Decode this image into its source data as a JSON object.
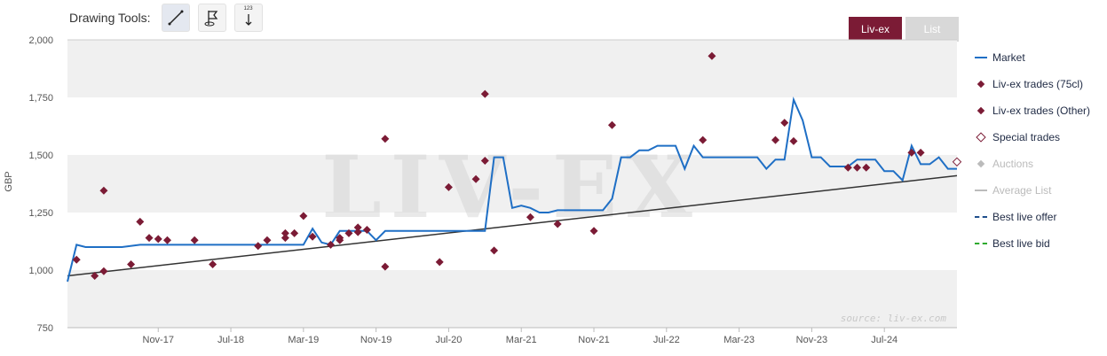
{
  "toolbar": {
    "label": "Drawing Tools:",
    "tools": [
      {
        "icon": "line-draw-icon"
      },
      {
        "icon": "flag-annotation-icon"
      },
      {
        "icon": "measure-icon",
        "badge": "123"
      }
    ]
  },
  "view_toggle": {
    "active": "Liv-ex",
    "inactive": "List"
  },
  "watermark": "source: liv-ex.com",
  "watermark_logo": "LIV-EX",
  "chart_data": {
    "type": "line",
    "ylabel": "GBP",
    "ylim": [
      750,
      2000
    ],
    "yticks": [
      "2,000",
      "1,750",
      "1,500",
      "1,250",
      "1,000",
      "750"
    ],
    "ytick_values": [
      2000,
      1750,
      1500,
      1250,
      1000,
      750
    ],
    "xlim": [
      "2017-01",
      "2025-03"
    ],
    "xticks": [
      {
        "label": "Nov-17",
        "date": "2017-11"
      },
      {
        "label": "Jul-18",
        "date": "2018-07"
      },
      {
        "label": "Mar-19",
        "date": "2019-03"
      },
      {
        "label": "Nov-19",
        "date": "2019-11"
      },
      {
        "label": "Jul-20",
        "date": "2020-07"
      },
      {
        "label": "Mar-21",
        "date": "2021-03"
      },
      {
        "label": "Nov-21",
        "date": "2021-11"
      },
      {
        "label": "Jul-22",
        "date": "2022-07"
      },
      {
        "label": "Mar-23",
        "date": "2023-03"
      },
      {
        "label": "Nov-23",
        "date": "2023-11"
      },
      {
        "label": "Jul-24",
        "date": "2024-07"
      }
    ],
    "legend_position": "right",
    "series": [
      {
        "name": "Market",
        "kind": "line",
        "color": "#1f6fc5",
        "points": [
          [
            "2017-01",
            950
          ],
          [
            "2017-02",
            1110
          ],
          [
            "2017-03",
            1100
          ],
          [
            "2017-07",
            1100
          ],
          [
            "2017-09",
            1110
          ],
          [
            "2018-05",
            1110
          ],
          [
            "2018-10",
            1110
          ],
          [
            "2019-03",
            1110
          ],
          [
            "2019-04",
            1180
          ],
          [
            "2019-05",
            1120
          ],
          [
            "2019-06",
            1110
          ],
          [
            "2019-07",
            1170
          ],
          [
            "2019-10",
            1170
          ],
          [
            "2019-11",
            1130
          ],
          [
            "2019-12",
            1170
          ],
          [
            "2020-06",
            1170
          ],
          [
            "2020-11",
            1170
          ],
          [
            "2020-12",
            1490
          ],
          [
            "2021-01",
            1490
          ],
          [
            "2021-02",
            1270
          ],
          [
            "2021-03",
            1280
          ],
          [
            "2021-04",
            1270
          ],
          [
            "2021-05",
            1250
          ],
          [
            "2021-06",
            1250
          ],
          [
            "2021-07",
            1260
          ],
          [
            "2021-12",
            1260
          ],
          [
            "2022-01",
            1310
          ],
          [
            "2022-02",
            1490
          ],
          [
            "2022-03",
            1490
          ],
          [
            "2022-04",
            1520
          ],
          [
            "2022-05",
            1520
          ],
          [
            "2022-06",
            1540
          ],
          [
            "2022-08",
            1540
          ],
          [
            "2022-09",
            1440
          ],
          [
            "2022-10",
            1540
          ],
          [
            "2022-11",
            1490
          ],
          [
            "2023-05",
            1490
          ],
          [
            "2023-06",
            1440
          ],
          [
            "2023-07",
            1480
          ],
          [
            "2023-08",
            1480
          ],
          [
            "2023-09",
            1740
          ],
          [
            "2023-10",
            1650
          ],
          [
            "2023-11",
            1490
          ],
          [
            "2023-12",
            1490
          ],
          [
            "2024-01",
            1450
          ],
          [
            "2024-02",
            1450
          ],
          [
            "2024-03",
            1450
          ],
          [
            "2024-04",
            1480
          ],
          [
            "2024-06",
            1480
          ],
          [
            "2024-07",
            1430
          ],
          [
            "2024-08",
            1430
          ],
          [
            "2024-09",
            1390
          ],
          [
            "2024-10",
            1540
          ],
          [
            "2024-11",
            1460
          ],
          [
            "2024-12",
            1460
          ],
          [
            "2025-01",
            1490
          ],
          [
            "2025-02",
            1440
          ],
          [
            "2025-03",
            1440
          ]
        ]
      },
      {
        "name": "Liv-ex trades (75cl)",
        "kind": "marker",
        "color": "#7b1b35",
        "points": [
          [
            "2017-02",
            1045
          ],
          [
            "2017-04",
            975
          ],
          [
            "2017-05",
            995
          ],
          [
            "2017-05",
            1345
          ],
          [
            "2017-08",
            1025
          ],
          [
            "2017-09",
            1210
          ],
          [
            "2017-10",
            1140
          ],
          [
            "2017-11",
            1135
          ],
          [
            "2017-12",
            1130
          ],
          [
            "2018-03",
            1130
          ],
          [
            "2018-05",
            1025
          ],
          [
            "2018-10",
            1105
          ],
          [
            "2018-11",
            1130
          ],
          [
            "2019-01",
            1140
          ],
          [
            "2019-01",
            1160
          ],
          [
            "2019-02",
            1160
          ],
          [
            "2019-03",
            1235
          ],
          [
            "2019-04",
            1145
          ],
          [
            "2019-06",
            1110
          ],
          [
            "2019-07",
            1130
          ],
          [
            "2019-07",
            1140
          ],
          [
            "2019-08",
            1160
          ],
          [
            "2019-09",
            1165
          ],
          [
            "2019-09",
            1185
          ],
          [
            "2019-10",
            1175
          ],
          [
            "2019-12",
            1015
          ],
          [
            "2019-12",
            1570
          ],
          [
            "2020-06",
            1035
          ],
          [
            "2020-07",
            1360
          ],
          [
            "2020-10",
            1395
          ],
          [
            "2020-11",
            1475
          ],
          [
            "2020-11",
            1765
          ],
          [
            "2020-12",
            1085
          ],
          [
            "2021-04",
            1230
          ],
          [
            "2021-07",
            1200
          ],
          [
            "2021-11",
            1170
          ],
          [
            "2022-01",
            1630
          ],
          [
            "2022-11",
            1565
          ],
          [
            "2022-12",
            1930
          ],
          [
            "2023-07",
            1565
          ],
          [
            "2023-08",
            1640
          ],
          [
            "2023-09",
            1560
          ],
          [
            "2024-03",
            1445
          ],
          [
            "2024-04",
            1445
          ],
          [
            "2024-05",
            1445
          ],
          [
            "2024-10",
            1510
          ],
          [
            "2024-11",
            1510
          ]
        ]
      },
      {
        "name": "Liv-ex trades (Other)",
        "kind": "marker",
        "color": "#7b1b35",
        "points": []
      },
      {
        "name": "Special trades",
        "kind": "marker-hollow",
        "color": "#7b1b35",
        "points": [
          [
            "2025-03",
            1470
          ]
        ]
      },
      {
        "name": "Auctions",
        "kind": "marker",
        "color": "#bbbbbb",
        "disabled": true,
        "points": []
      },
      {
        "name": "Average List",
        "kind": "line",
        "color": "#bbbbbb",
        "disabled": true,
        "points": []
      },
      {
        "name": "Best live offer",
        "kind": "dash",
        "color": "#1f4e8c",
        "points": []
      },
      {
        "name": "Best live bid",
        "kind": "dash",
        "color": "#2eaa2e",
        "points": []
      }
    ],
    "trendline": {
      "color": "#333333",
      "points": [
        [
          "2017-01",
          975
        ],
        [
          "2025-03",
          1410
        ]
      ]
    }
  }
}
